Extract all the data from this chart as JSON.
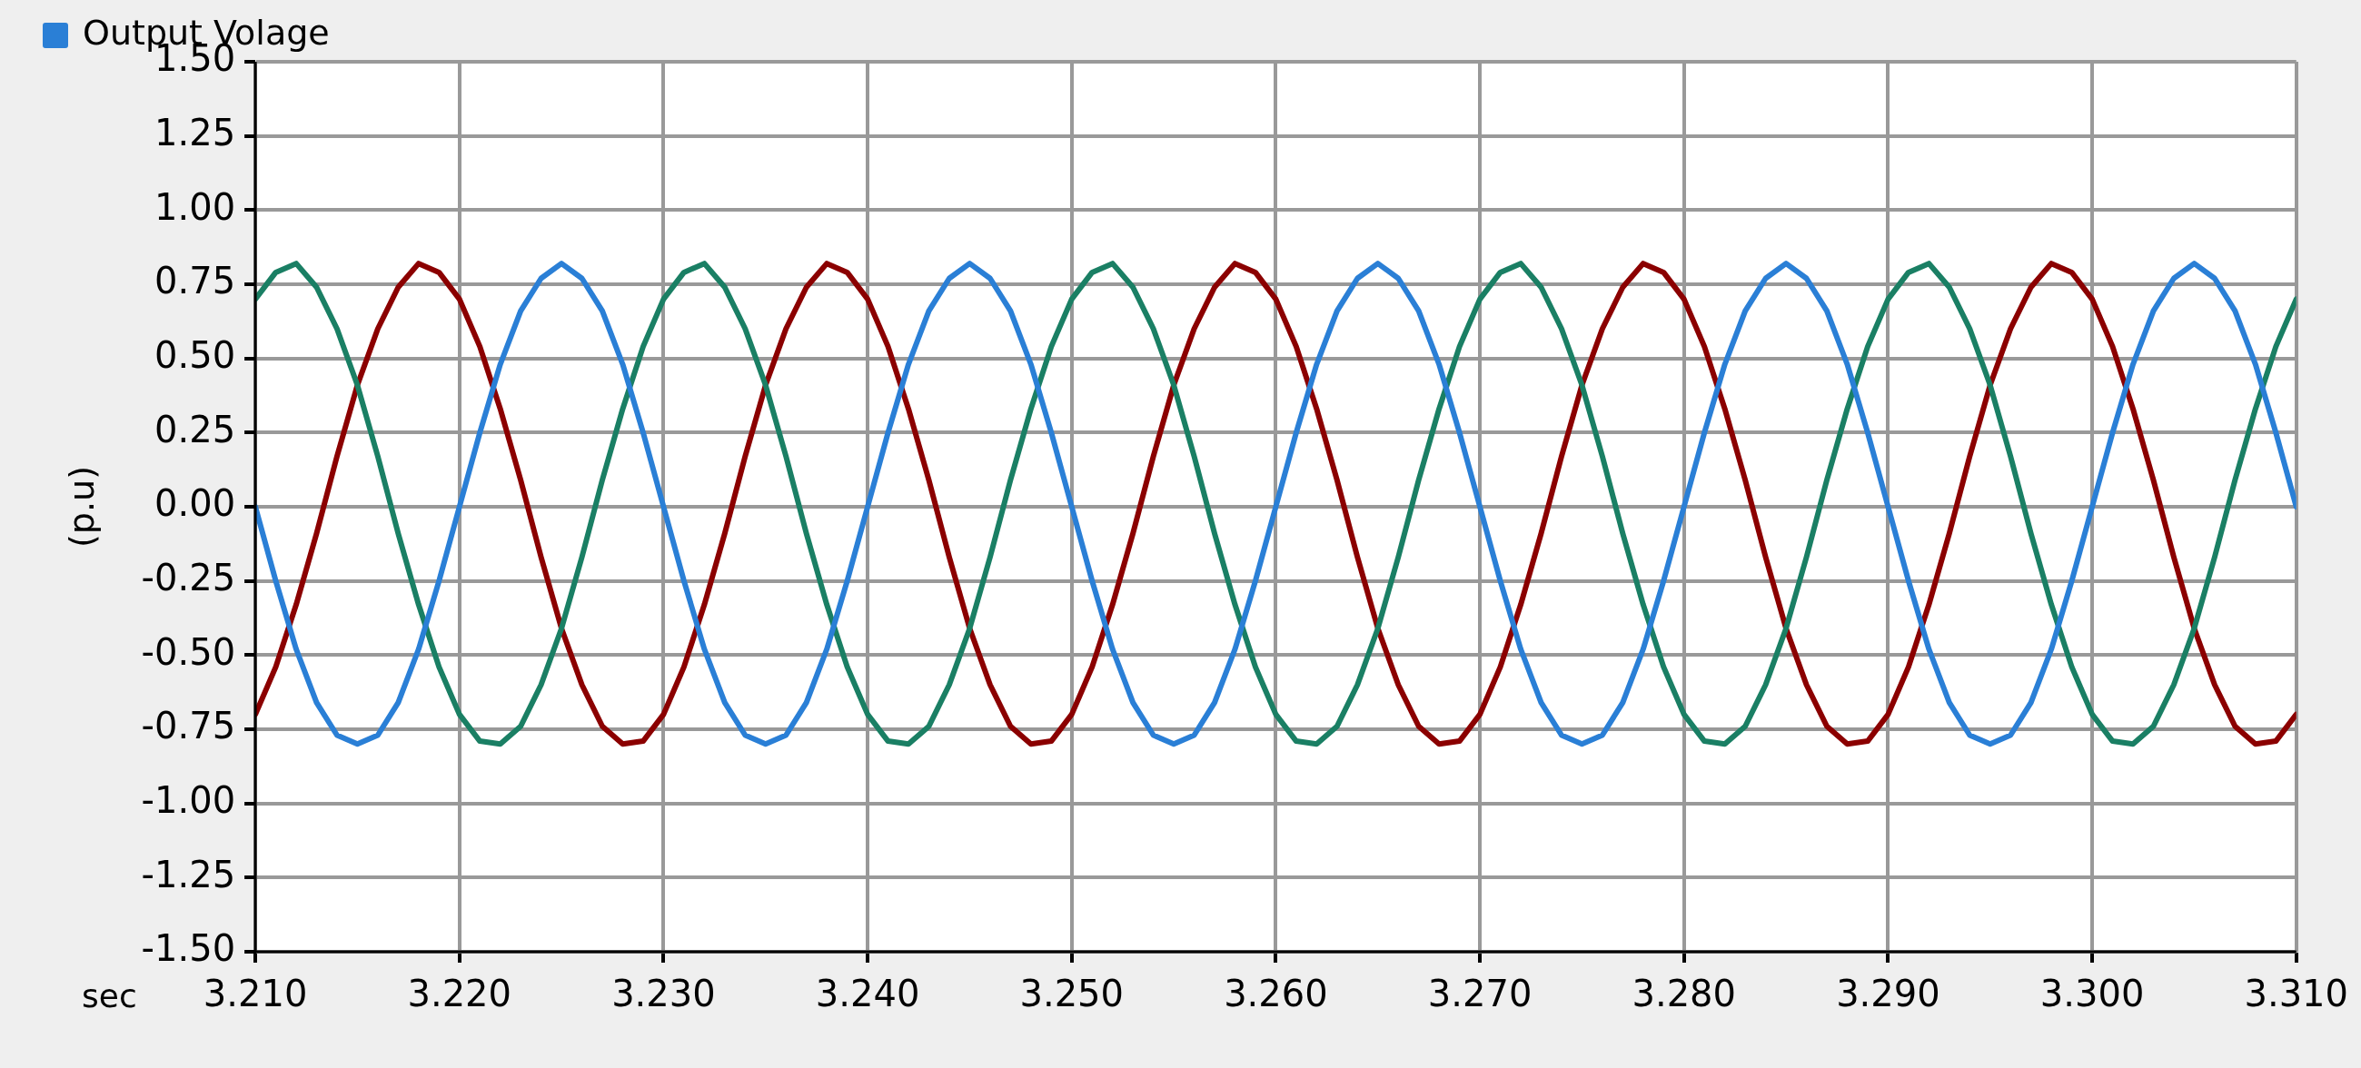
{
  "chart_data": {
    "type": "line",
    "xlabel": "sec",
    "ylabel": "(p.u)",
    "legend": "top left",
    "grid": true,
    "marker": "none",
    "line_style": "solid",
    "xlim": [
      3.21,
      3.31
    ],
    "xticks": [
      {
        "value": 3.21,
        "label": "3.210"
      },
      {
        "value": 3.22,
        "label": "3.220"
      },
      {
        "value": 3.23,
        "label": "3.230"
      },
      {
        "value": 3.24,
        "label": "3.240"
      },
      {
        "value": 3.25,
        "label": "3.250"
      },
      {
        "value": 3.26,
        "label": "3.260"
      },
      {
        "value": 3.27,
        "label": "3.270"
      },
      {
        "value": 3.28,
        "label": "3.280"
      },
      {
        "value": 3.29,
        "label": "3.290"
      },
      {
        "value": 3.3,
        "label": "3.300"
      },
      {
        "value": 3.31,
        "label": "3.310"
      }
    ],
    "ylim": [
      -1.5,
      1.5
    ],
    "yticks": [
      {
        "value": -1.5,
        "label": "-1.50"
      },
      {
        "value": -1.25,
        "label": "-1.25"
      },
      {
        "value": -1,
        "label": "-1.00"
      },
      {
        "value": -0.75,
        "label": "-0.75"
      },
      {
        "value": -0.5,
        "label": "-0.50"
      },
      {
        "value": -0.25,
        "label": "-0.25"
      },
      {
        "value": 0,
        "label": "0.00"
      },
      {
        "value": 0.25,
        "label": "0.25"
      },
      {
        "value": 0.5,
        "label": "0.50"
      },
      {
        "value": 0.75,
        "label": "0.75"
      },
      {
        "value": 1,
        "label": "1.00"
      },
      {
        "value": 1.25,
        "label": "1.25"
      },
      {
        "value": 1.5,
        "label": "1.50"
      }
    ],
    "x": [
      3.21,
      3.211,
      3.212,
      3.213,
      3.214,
      3.215,
      3.216,
      3.217,
      3.218,
      3.219,
      3.22,
      3.221,
      3.222,
      3.223,
      3.224,
      3.225,
      3.226,
      3.227,
      3.228,
      3.229,
      3.23,
      3.231,
      3.232,
      3.233,
      3.234,
      3.235,
      3.236,
      3.237,
      3.238,
      3.239,
      3.24,
      3.241,
      3.242,
      3.243,
      3.244,
      3.245,
      3.246,
      3.247,
      3.248,
      3.249,
      3.25,
      3.251,
      3.252,
      3.253,
      3.254,
      3.255,
      3.256,
      3.257,
      3.258,
      3.259,
      3.26,
      3.261,
      3.262,
      3.263,
      3.264,
      3.265,
      3.266,
      3.267,
      3.268,
      3.269,
      3.27,
      3.271,
      3.272,
      3.273,
      3.274,
      3.275,
      3.276,
      3.277,
      3.278,
      3.279,
      3.28,
      3.281,
      3.282,
      3.283,
      3.284,
      3.285,
      3.286,
      3.287,
      3.288,
      3.289,
      3.29,
      3.291,
      3.292,
      3.293,
      3.294,
      3.295,
      3.296,
      3.297,
      3.298,
      3.299,
      3.3,
      3.301,
      3.302,
      3.303,
      3.304,
      3.305,
      3.306,
      3.307,
      3.308,
      3.309,
      3.31
    ],
    "series": [
      {
        "name": "Output Volage",
        "color": "#2a7fd6",
        "values": [
          0,
          -0.25,
          -0.48,
          -0.66,
          -0.77,
          -0.8,
          -0.77,
          -0.66,
          -0.48,
          -0.25,
          0,
          0.25,
          0.48,
          0.66,
          0.77,
          0.82,
          0.77,
          0.66,
          0.48,
          0.25,
          0,
          -0.25,
          -0.48,
          -0.66,
          -0.77,
          -0.8,
          -0.77,
          -0.66,
          -0.48,
          -0.25,
          0,
          0.25,
          0.48,
          0.66,
          0.77,
          0.82,
          0.77,
          0.66,
          0.48,
          0.25,
          0,
          -0.25,
          -0.48,
          -0.66,
          -0.77,
          -0.8,
          -0.77,
          -0.66,
          -0.48,
          -0.25,
          0,
          0.25,
          0.48,
          0.66,
          0.77,
          0.82,
          0.77,
          0.66,
          0.48,
          0.25,
          0,
          -0.25,
          -0.48,
          -0.66,
          -0.77,
          -0.8,
          -0.77,
          -0.66,
          -0.48,
          -0.25,
          0,
          0.25,
          0.48,
          0.66,
          0.77,
          0.82,
          0.77,
          0.66,
          0.48,
          0.25,
          0,
          -0.25,
          -0.48,
          -0.66,
          -0.77,
          -0.8,
          -0.77,
          -0.66,
          -0.48,
          -0.25,
          0,
          0.25,
          0.48,
          0.66,
          0.77,
          0.82,
          0.77,
          0.66,
          0.48,
          0.25,
          0
        ]
      },
      {
        "color": "#1a7f64",
        "values": [
          0.7,
          0.79,
          0.82,
          0.74,
          0.6,
          0.41,
          0.17,
          -0.09,
          -0.33,
          -0.54,
          -0.7,
          -0.79,
          -0.8,
          -0.74,
          -0.6,
          -0.41,
          -0.17,
          0.09,
          0.33,
          0.54,
          0.7,
          0.79,
          0.82,
          0.74,
          0.6,
          0.41,
          0.17,
          -0.09,
          -0.33,
          -0.54,
          -0.7,
          -0.79,
          -0.8,
          -0.74,
          -0.6,
          -0.41,
          -0.17,
          0.09,
          0.33,
          0.54,
          0.7,
          0.79,
          0.82,
          0.74,
          0.6,
          0.41,
          0.17,
          -0.09,
          -0.33,
          -0.54,
          -0.7,
          -0.79,
          -0.8,
          -0.74,
          -0.6,
          -0.41,
          -0.17,
          0.09,
          0.33,
          0.54,
          0.7,
          0.79,
          0.82,
          0.74,
          0.6,
          0.41,
          0.17,
          -0.09,
          -0.33,
          -0.54,
          -0.7,
          -0.79,
          -0.8,
          -0.74,
          -0.6,
          -0.41,
          -0.17,
          0.09,
          0.33,
          0.54,
          0.7,
          0.79,
          0.82,
          0.74,
          0.6,
          0.41,
          0.17,
          -0.09,
          -0.33,
          -0.54,
          -0.7,
          -0.79,
          -0.8,
          -0.74,
          -0.6,
          -0.41,
          -0.17,
          0.09,
          0.33,
          0.54,
          0.7
        ]
      },
      {
        "color": "#8b0000",
        "values": [
          -0.7,
          -0.54,
          -0.33,
          -0.09,
          0.17,
          0.41,
          0.6,
          0.74,
          0.82,
          0.79,
          0.7,
          0.54,
          0.33,
          0.09,
          -0.17,
          -0.41,
          -0.6,
          -0.74,
          -0.8,
          -0.79,
          -0.7,
          -0.54,
          -0.33,
          -0.09,
          0.17,
          0.41,
          0.6,
          0.74,
          0.82,
          0.79,
          0.7,
          0.54,
          0.33,
          0.09,
          -0.17,
          -0.41,
          -0.6,
          -0.74,
          -0.8,
          -0.79,
          -0.7,
          -0.54,
          -0.33,
          -0.09,
          0.17,
          0.41,
          0.6,
          0.74,
          0.82,
          0.79,
          0.7,
          0.54,
          0.33,
          0.09,
          -0.17,
          -0.41,
          -0.6,
          -0.74,
          -0.8,
          -0.79,
          -0.7,
          -0.54,
          -0.33,
          -0.09,
          0.17,
          0.41,
          0.6,
          0.74,
          0.82,
          0.79,
          0.7,
          0.54,
          0.33,
          0.09,
          -0.17,
          -0.41,
          -0.6,
          -0.74,
          -0.8,
          -0.79,
          -0.7,
          -0.54,
          -0.33,
          -0.09,
          0.17,
          0.41,
          0.6,
          0.74,
          0.82,
          0.79,
          0.7,
          0.54,
          0.33,
          0.09,
          -0.17,
          -0.41,
          -0.6,
          -0.74,
          -0.8,
          -0.79,
          -0.7
        ]
      }
    ]
  }
}
